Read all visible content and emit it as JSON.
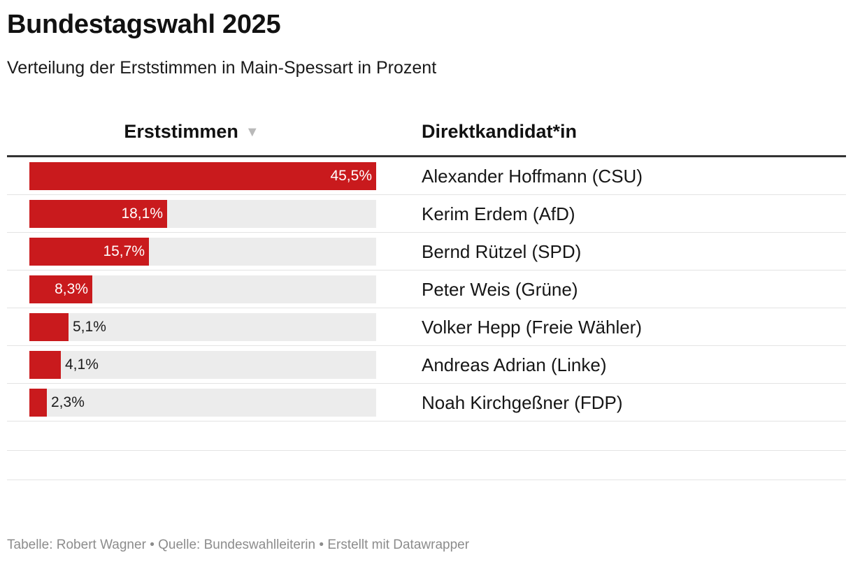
{
  "title": "Bundestagswahl 2025",
  "subtitle": "Verteilung der Erststimmen in Main-Spessart in Prozent",
  "footer": {
    "table_credit": "Tabelle: Robert Wagner",
    "separator": "•",
    "source": "Quelle: Bundeswahlleiterin",
    "tool": "Erstellt mit Datawrapper"
  },
  "colors": {
    "bar": "#c91a1d",
    "track": "#ececec"
  },
  "chart_data": {
    "type": "table",
    "title": "Bundestagswahl 2025",
    "subtitle": "Verteilung der Erststimmen in Main-Spessart in Prozent",
    "columns": [
      {
        "label": "Erststimmen",
        "sort_icon": "▼"
      },
      {
        "label": "Direktkandidat*in"
      }
    ],
    "value_max": 45.5,
    "rows": [
      {
        "value": 45.5,
        "label": "45,5%",
        "candidate": "Alexander Hoffmann (CSU)"
      },
      {
        "value": 18.1,
        "label": "18,1%",
        "candidate": "Kerim Erdem (AfD)"
      },
      {
        "value": 15.7,
        "label": "15,7%",
        "candidate": "Bernd Rützel (SPD)"
      },
      {
        "value": 8.3,
        "label": "8,3%",
        "candidate": "Peter Weis (Grüne)"
      },
      {
        "value": 5.1,
        "label": "5,1%",
        "candidate": "Volker Hepp (Freie Wähler)"
      },
      {
        "value": 4.1,
        "label": "4,1%",
        "candidate": "Andreas Adrian (Linke)"
      },
      {
        "value": 2.3,
        "label": "2,3%",
        "candidate": "Noah Kirchgeßner (FDP)"
      }
    ]
  }
}
